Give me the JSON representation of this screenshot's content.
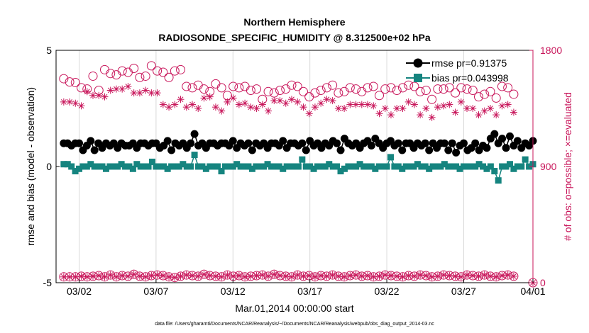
{
  "chart_data": {
    "type": "line",
    "title": "Northern Hemisphere",
    "subtitle": "RADIOSONDE_SPECIFIC_HUMIDITY @ 8.312500e+02 hPa",
    "xlabel": "Mar.01,2014 00:00:00 start",
    "ylabel": "rmse and bias (model - observation)",
    "y2label": "# of obs: o=possible; ×=evaluated",
    "xlim": [
      0.5,
      31.5
    ],
    "ylim": [
      -5,
      5
    ],
    "y2lim": [
      0,
      1800
    ],
    "x_ticks": [
      {
        "value": 2,
        "label": "03/02"
      },
      {
        "value": 7,
        "label": "03/07"
      },
      {
        "value": 12,
        "label": "03/12"
      },
      {
        "value": 17,
        "label": "03/17"
      },
      {
        "value": 22,
        "label": "03/22"
      },
      {
        "value": 27,
        "label": "03/27"
      },
      {
        "value": 32,
        "label": "04/01"
      }
    ],
    "y_ticks": [
      "5",
      "0",
      "-5"
    ],
    "y2_ticks": [
      "1800",
      "900",
      "0"
    ],
    "legend": {
      "position": "top-right",
      "entries": [
        {
          "label": "rmse pr=0.91375",
          "color": "#000000",
          "marker": "circle"
        },
        {
          "label": "bias pr=0.043998",
          "color": "#15847f",
          "marker": "square"
        }
      ]
    },
    "footnote": "data file: /Users/gharamti/Documents/NCAR/Reanalysis/~/Documents/NCAR/Reanalysis/webpub/obs_diag_output_2014-03.nc",
    "x_start": 1.0,
    "x_step": 0.25,
    "series": [
      {
        "name": "rmse",
        "axis": "left",
        "color": "#000000",
        "values": [
          1.0,
          1.0,
          0.9,
          1.0,
          1.0,
          0.7,
          0.9,
          1.1,
          0.7,
          1.0,
          0.8,
          1.0,
          0.9,
          1.0,
          0.8,
          1.0,
          0.9,
          0.9,
          1.0,
          0.8,
          1.0,
          1.0,
          0.9,
          1.0,
          1.0,
          0.8,
          0.9,
          1.1,
          0.7,
          1.0,
          0.9,
          1.0,
          0.8,
          1.0,
          1.4,
          0.9,
          1.0,
          0.8,
          1.0,
          1.0,
          0.9,
          1.0,
          1.0,
          0.9,
          1.1,
          0.8,
          1.0,
          0.9,
          1.0,
          0.7,
          1.0,
          0.9,
          1.0,
          0.8,
          1.0,
          1.0,
          0.9,
          1.1,
          0.8,
          1.0,
          1.0,
          0.9,
          1.0,
          0.7,
          1.1,
          0.9,
          1.0,
          0.8,
          1.0,
          0.9,
          1.1,
          1.0,
          0.7,
          1.2,
          1.0,
          0.9,
          1.0,
          0.8,
          1.0,
          1.1,
          0.9,
          1.2,
          1.0,
          0.8,
          1.0,
          1.1,
          0.9,
          1.0,
          0.7,
          1.0,
          1.0,
          0.8,
          1.0,
          0.9,
          1.0,
          0.7,
          1.0,
          0.8,
          1.0,
          1.0,
          0.7,
          1.0,
          0.6,
          0.9,
          1.0,
          0.7,
          0.8,
          1.0,
          0.7,
          0.9,
          0.8,
          1.2,
          1.4,
          1.0,
          1.2,
          0.8,
          1.3,
          0.9,
          1.1,
          0.8,
          1.0,
          0.9,
          1.1
        ]
      },
      {
        "name": "bias",
        "axis": "left",
        "color": "#15847f",
        "values": [
          0.1,
          0.1,
          0.0,
          -0.2,
          -0.1,
          0.0,
          0.0,
          0.1,
          0.0,
          0.0,
          0.0,
          -0.1,
          0.0,
          0.0,
          0.0,
          0.1,
          0.0,
          0.0,
          -0.1,
          0.1,
          0.0,
          0.0,
          0.0,
          0.2,
          0.0,
          0.0,
          0.0,
          -0.1,
          0.0,
          0.0,
          0.0,
          0.1,
          0.0,
          0.0,
          0.5,
          0.0,
          0.0,
          -0.1,
          0.0,
          0.0,
          0.0,
          -0.2,
          0.0,
          0.0,
          0.0,
          0.1,
          0.0,
          0.0,
          0.0,
          -0.1,
          0.0,
          0.0,
          0.0,
          0.1,
          0.0,
          0.0,
          0.0,
          -0.1,
          0.0,
          0.0,
          0.0,
          0.0,
          0.3,
          0.0,
          0.0,
          -0.1,
          0.0,
          0.0,
          0.0,
          0.1,
          0.0,
          0.0,
          -0.2,
          -0.1,
          0.0,
          0.0,
          0.0,
          0.1,
          0.0,
          0.0,
          0.0,
          -0.1,
          0.0,
          0.0,
          0.0,
          0.4,
          0.0,
          0.0,
          -0.1,
          0.0,
          0.0,
          0.0,
          0.1,
          0.0,
          0.0,
          -0.1,
          0.0,
          0.0,
          0.0,
          0.1,
          0.0,
          0.0,
          0.0,
          -0.1,
          0.0,
          0.0,
          0.0,
          0.0,
          0.1,
          0.0,
          -0.1,
          0.0,
          -0.2,
          -0.6,
          0.0,
          0.0,
          0.1,
          -0.1,
          0.0,
          0.0,
          0.3,
          0.0,
          0.1
        ]
      },
      {
        "name": "possible",
        "axis": "right",
        "color": "#c8155a",
        "values": [
          1580,
          1555,
          1550,
          1510,
          1500,
          1600,
          1490,
          1650,
          1620,
          1610,
          1640,
          1630,
          1660,
          1590,
          1600,
          1680,
          1640,
          1630,
          1590,
          1640,
          1650,
          1520,
          1510,
          1530,
          1500,
          1480,
          1540,
          1510,
          1450,
          1520,
          1510,
          1520,
          1490,
          1500,
          1420,
          1480,
          1470,
          1490,
          1500,
          1530,
          1520,
          1480,
          1440,
          1470,
          1490,
          1510,
          1530,
          1470,
          1480,
          1510,
          1500,
          1480,
          1510,
          1520,
          1450,
          1500,
          1510,
          1490,
          1510,
          1530,
          1520,
          1480,
          1490,
          1420,
          1500,
          1500,
          1510,
          1470,
          1510,
          1500,
          1490,
          1440,
          1460,
          1480,
          1430,
          1520,
          1510,
          1460
        ]
      },
      {
        "name": "evaluated",
        "axis": "right",
        "color": "#c8155a",
        "values": [
          1400,
          1400,
          1390,
          1370,
          1480,
          1450,
          1450,
          1440,
          1490,
          1500,
          1500,
          1520,
          1470,
          1470,
          1490,
          1470,
          1470,
          1380,
          1360,
          1380,
          1420,
          1360,
          1380,
          1350,
          1430,
          1440,
          1360,
          1330,
          1400,
          1430,
          1380,
          1390,
          1360,
          1350,
          1380,
          1330,
          1410,
          1410,
          1390,
          1420,
          1400,
          1360,
          1310,
          1360,
          1390,
          1420,
          1410,
          1350,
          1350,
          1380,
          1380,
          1380,
          1380,
          1370,
          1310,
          1350,
          1300,
          1350,
          1350,
          1400,
          1380,
          1300,
          1350,
          1280,
          1360,
          1370,
          1380,
          1320,
          1400,
          1350,
          1350,
          1300,
          1330,
          1350,
          1300,
          1370,
          1380,
          1320
        ]
      },
      {
        "name": "possible_low",
        "axis": "right",
        "color": "#c8155a",
        "values": [
          45,
          45,
          45,
          50,
          45,
          50,
          55,
          45,
          60,
          45,
          55,
          50,
          65,
          50,
          45,
          55,
          60,
          55,
          45,
          40,
          50,
          60,
          55,
          50,
          65,
          55,
          50,
          45,
          60,
          50,
          55,
          45,
          50,
          55,
          60,
          50,
          65,
          55,
          50,
          45,
          60,
          50,
          55,
          45,
          55,
          50,
          60,
          50,
          45,
          55,
          60,
          50,
          55,
          45,
          50,
          60,
          55,
          50,
          45,
          55,
          50,
          60,
          55,
          45,
          50,
          60,
          55,
          50,
          45,
          60,
          55,
          50,
          60,
          50,
          45,
          55,
          60,
          50
        ]
      },
      {
        "name": "evaluated_low",
        "axis": "right",
        "color": "#c8155a",
        "values": [
          45,
          45,
          45,
          50,
          45,
          50,
          55,
          45,
          60,
          45,
          55,
          50,
          65,
          50,
          45,
          55,
          60,
          55,
          45,
          40,
          50,
          60,
          55,
          50,
          65,
          55,
          50,
          45,
          60,
          50,
          55,
          45,
          50,
          55,
          60,
          50,
          65,
          55,
          50,
          45,
          60,
          50,
          55,
          45,
          55,
          50,
          60,
          50,
          45,
          55,
          60,
          50,
          55,
          45,
          50,
          60,
          55,
          50,
          45,
          55,
          50,
          60,
          55,
          45,
          50,
          60,
          55,
          50,
          45,
          60,
          55,
          50,
          60,
          50,
          45,
          55,
          60,
          50
        ]
      }
    ]
  }
}
